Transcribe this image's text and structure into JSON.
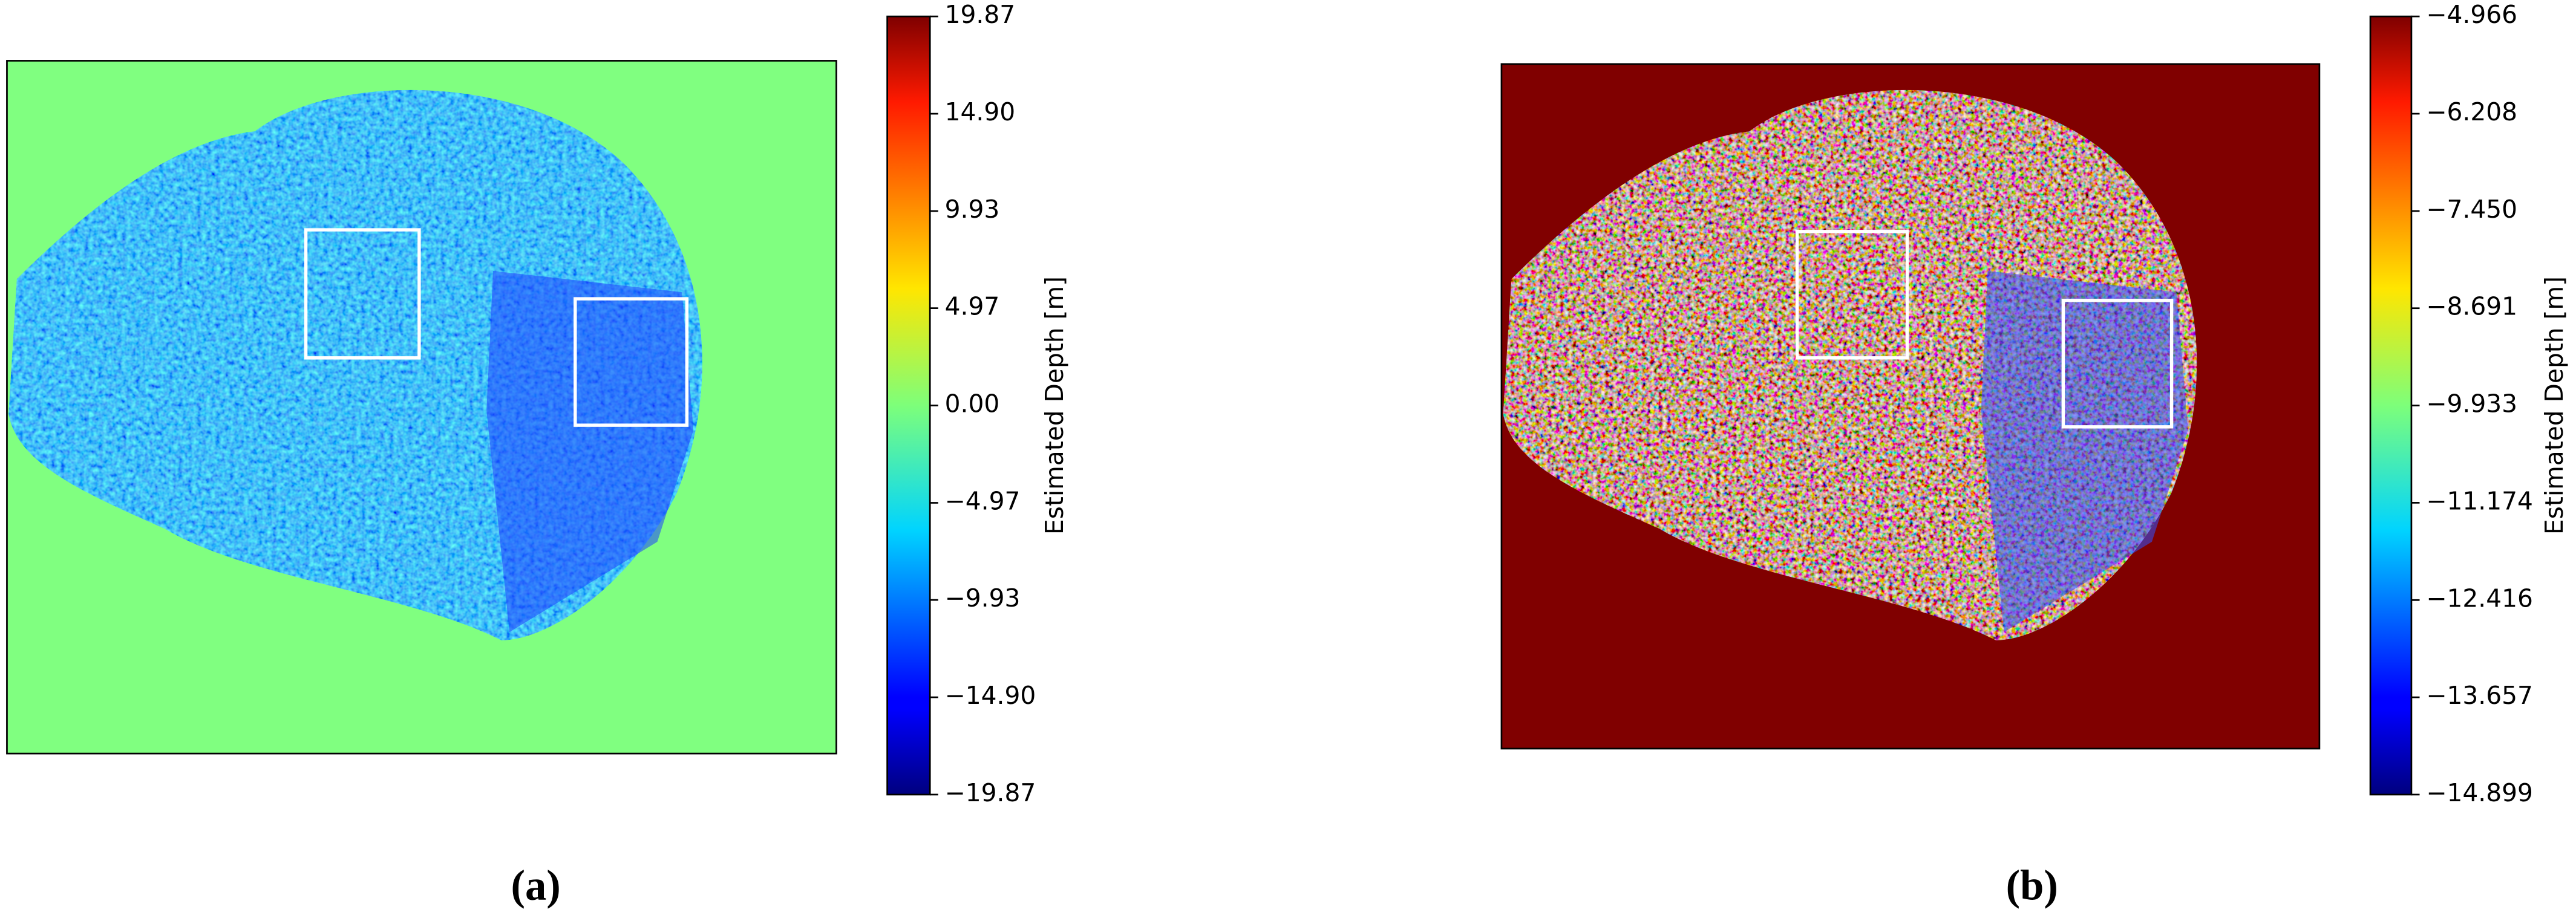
{
  "chart_data": [
    {
      "type": "heatmap",
      "colormap": "jet",
      "background": "#80ff80",
      "caption": "(a)",
      "colorbar_label": "Estimated Depth [m]",
      "ylim": [
        -19.87,
        19.87
      ],
      "yticks": [
        {
          "value": -19.87,
          "label": "−19.87"
        },
        {
          "value": -14.9,
          "label": "−14.90"
        },
        {
          "value": -9.93,
          "label": "−9.93"
        },
        {
          "value": -4.97,
          "label": "−4.97"
        },
        {
          "value": 0,
          "label": "0.00"
        },
        4.97,
        9.93,
        {
          "value": 14.9,
          "label": "14.90"
        },
        19.87
      ]
    },
    {
      "type": "heatmap",
      "colormap": "jet",
      "background": "#800000",
      "caption": "(b)",
      "colorbar_label": "Estimated Depth [m]",
      "ylim": [
        -14.899,
        -4.966
      ],
      "yticks": [
        {
          "value": -14.899,
          "label": "−14.899"
        },
        {
          "value": -13.657,
          "label": "−13.657"
        },
        {
          "value": -12.416,
          "label": "−12.416"
        },
        {
          "value": -11.174,
          "label": "−11.174"
        },
        {
          "value": -9.933,
          "label": "−9.933"
        },
        {
          "value": -8.691,
          "label": "−8.691"
        },
        {
          "value": -7.45,
          "label": "−7.450"
        },
        {
          "value": -6.208,
          "label": "−6.208"
        },
        {
          "value": -4.966,
          "label": "−4.966"
        }
      ]
    }
  ]
}
